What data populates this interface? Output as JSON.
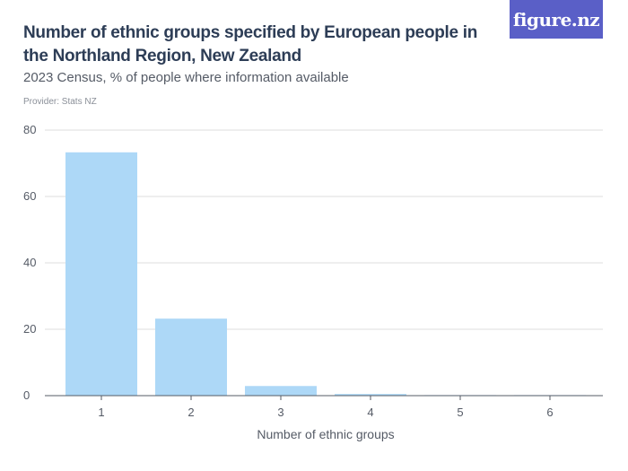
{
  "header": {
    "title": "Number of ethnic groups specified by European people in the Northland Region, New Zealand",
    "subtitle": "2023 Census, % of people where information available",
    "provider": "Provider: Stats NZ"
  },
  "logo": {
    "text": "figure.nz",
    "color": "#5a5fc7"
  },
  "colors": {
    "bar": "#add8f7",
    "grid": "#dddddd",
    "axis": "#555b66"
  },
  "chart_data": {
    "type": "bar",
    "categories": [
      "1",
      "2",
      "3",
      "4",
      "5",
      "6"
    ],
    "values": [
      73.3,
      23.2,
      2.9,
      0.5,
      0.1,
      0.02
    ],
    "xlabel": "Number of ethnic groups",
    "ylabel": "",
    "ylim": [
      0,
      80
    ],
    "yticks": [
      0,
      20,
      40,
      60,
      80
    ],
    "grid": true
  }
}
